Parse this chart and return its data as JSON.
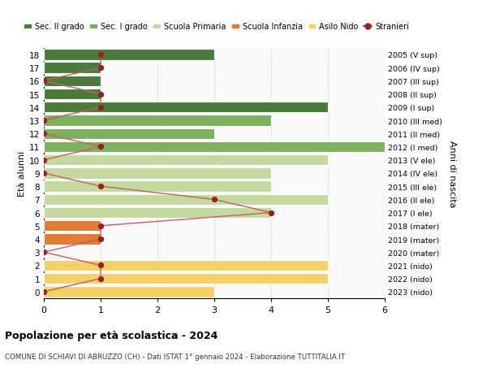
{
  "ages": [
    18,
    17,
    16,
    15,
    14,
    13,
    12,
    11,
    10,
    9,
    8,
    7,
    6,
    5,
    4,
    3,
    2,
    1,
    0
  ],
  "right_labels": [
    "2005 (V sup)",
    "2006 (IV sup)",
    "2007 (III sup)",
    "2008 (II sup)",
    "2009 (I sup)",
    "2010 (III med)",
    "2011 (II med)",
    "2012 (I med)",
    "2013 (V ele)",
    "2014 (IV ele)",
    "2015 (III ele)",
    "2016 (II ele)",
    "2017 (I ele)",
    "2018 (mater)",
    "2019 (mater)",
    "2020 (mater)",
    "2021 (nido)",
    "2022 (nido)",
    "2023 (nido)"
  ],
  "bar_values": [
    3,
    1,
    1,
    1,
    5,
    4,
    3,
    6,
    5,
    4,
    4,
    5,
    4,
    1,
    1,
    0,
    5,
    5,
    3
  ],
  "bar_colors": [
    "#4a7a3c",
    "#4a7a3c",
    "#4a7a3c",
    "#4a7a3c",
    "#4a7a3c",
    "#7db05f",
    "#7db05f",
    "#7db05f",
    "#c3d9a0",
    "#c3d9a0",
    "#c3d9a0",
    "#c3d9a0",
    "#c3d9a0",
    "#e07b35",
    "#e07b35",
    "#e07b35",
    "#f5d06a",
    "#f5d06a",
    "#f5d06a"
  ],
  "stranieri_values": [
    1,
    1,
    0,
    1,
    1,
    0,
    0,
    1,
    0,
    0,
    1,
    3,
    4,
    1,
    1,
    0,
    1,
    1,
    0
  ],
  "legend_labels": [
    "Sec. II grado",
    "Sec. I grado",
    "Scuola Primaria",
    "Scuola Infanzia",
    "Asilo Nido",
    "Stranieri"
  ],
  "legend_colors": [
    "#4a7a3c",
    "#7db05f",
    "#c3d9a0",
    "#e07b35",
    "#f5d06a",
    "#8b1a1a"
  ],
  "ylabel_left": "Età alunni",
  "ylabel_right": "Anni di nascita",
  "title": "Popolazione per età scolastica - 2024",
  "subtitle": "COMUNE DI SCHIAVI DI ABRUZZO (CH) - Dati ISTAT 1° gennaio 2024 - Elaborazione TUTTITALIA.IT",
  "xlim": [
    0,
    6
  ],
  "stranieri_color": "#9b2020",
  "stranieri_line_color": "#c06060",
  "bar_edge_color": "white",
  "bar_height": 0.82,
  "grid_color": "#cccccc",
  "bg_color": "#f9f9f9"
}
